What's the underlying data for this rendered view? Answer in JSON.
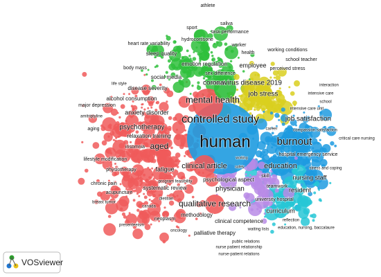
{
  "labels": [
    "athlete",
    "saliva",
    "sport",
    "task performance",
    "hydrocortisone",
    "heart rate variability",
    "worker",
    "working conditions",
    "sleep quality",
    "health",
    "school teacher",
    "body mass",
    "emotion regulation",
    "employee",
    "perceived stress",
    "social media",
    "sex difference",
    "life style",
    "mood",
    "coronavirus disease 2019",
    "interaction",
    "disease severity",
    "intensive care",
    "job stress",
    "alcohol consumption",
    "mental health",
    "school",
    "intensive care unit",
    "anxiety disorder",
    "job satisfaction",
    "major depression",
    "controlled study",
    "compassion satisfaction",
    "critical care nursing",
    "amitriptyline",
    "psychotherapy",
    "career",
    "burnout",
    "relaxation training",
    "aging",
    "insomnia",
    "human",
    "lifestyle modification",
    "aged",
    "hospital emergency service",
    "working",
    "safety",
    "education",
    "clinical article",
    "physiotherapy",
    "fatigue",
    "stress and coping",
    "chronic pain",
    "psychological aspect",
    "nursing staff",
    "program feasibility",
    "skill",
    "acupuncture",
    "systematic review",
    "teamwork",
    "resident",
    "physician",
    "breast tumor",
    "dietitian",
    "university hospital",
    "canada",
    "curriculum",
    "qualitative research",
    "neoplasm",
    "methodology",
    "clinical competence",
    "reflection",
    "presenteeism",
    "waiting lists",
    "education, nursing, baccalaure",
    "oncology",
    "palliative therapy",
    "public relations",
    "nurse patient relationship",
    "nurse-patient relations"
  ],
  "logo": {
    "text": "VOSviewer"
  }
}
